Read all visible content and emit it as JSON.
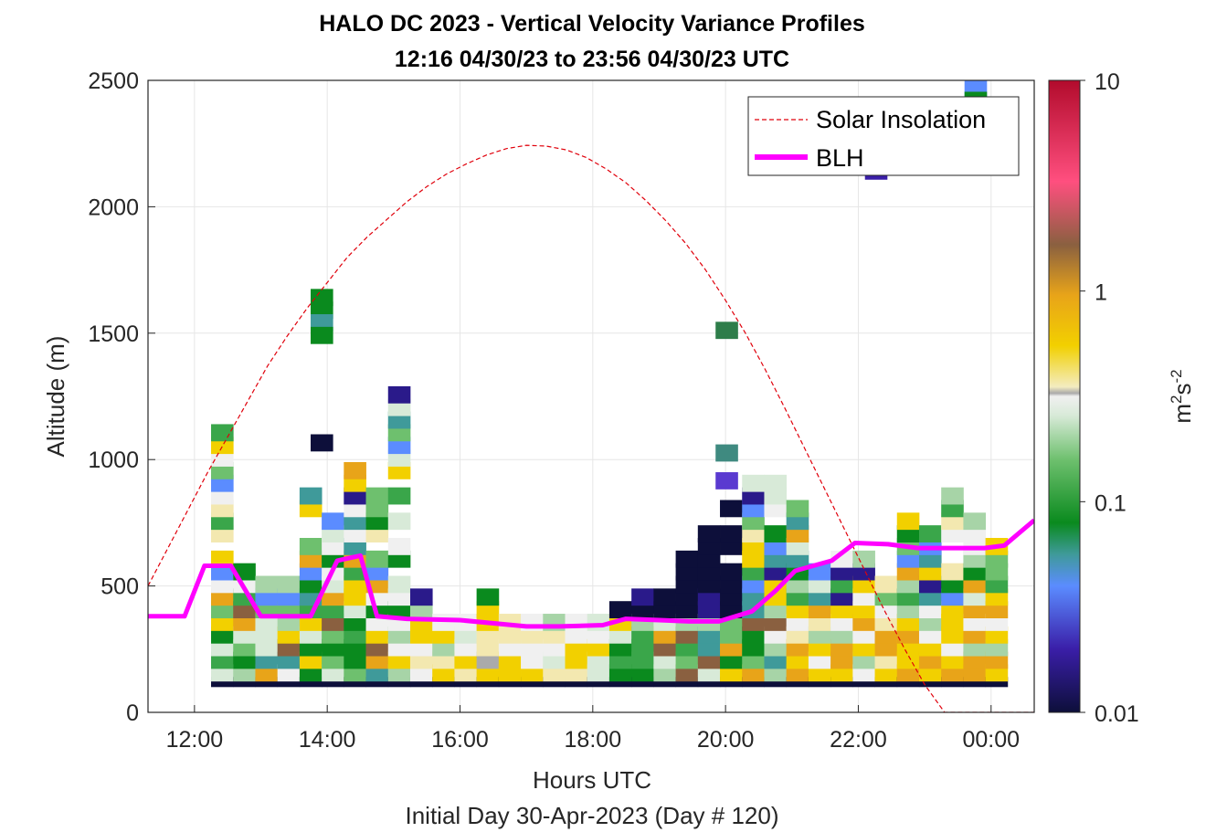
{
  "chart_data": {
    "type": "heatmap",
    "title": "HALO DC 2023 - Vertical Velocity Variance Profiles",
    "subtitle": "12:16 04/30/23 to 23:56 04/30/23  UTC",
    "xlabel": "Hours UTC",
    "xlabel2": "Initial Day 30-Apr-2023 (Day # 120)",
    "ylabel": "Altitude (m)",
    "x_ticks": [
      "12:00",
      "14:00",
      "16:00",
      "18:00",
      "20:00",
      "22:00",
      "00:00"
    ],
    "y_ticks": [
      "0",
      "500",
      "1000",
      "1500",
      "2000",
      "2500"
    ],
    "xlim_hours": [
      11.3,
      24.65
    ],
    "ylim": [
      0,
      2500
    ],
    "grid": true,
    "legend_position": "top-right",
    "colorbar": {
      "label_base": "m",
      "label_exp1": "2",
      "label_mid": "s",
      "label_exp2": "-2",
      "ticks": [
        "0.01",
        "0.1",
        "1",
        "10"
      ],
      "scale": "log",
      "range": [
        0.01,
        10
      ]
    },
    "series": [
      {
        "name": "Solar Insolation",
        "style": "dashed",
        "color": "#e0000b",
        "x": [
          11.3,
          11.6,
          11.9,
          12.2,
          12.5,
          12.8,
          13.1,
          13.4,
          13.7,
          14.0,
          14.3,
          14.6,
          14.9,
          15.2,
          15.5,
          15.8,
          16.1,
          16.4,
          16.7,
          17.0,
          17.3,
          17.6,
          17.9,
          18.2,
          18.5,
          18.8,
          19.1,
          19.4,
          19.7,
          20.0,
          20.3,
          20.6,
          20.9,
          21.2,
          21.5,
          21.8,
          22.1,
          22.4,
          22.7,
          23.0,
          23.3,
          23.6,
          23.85,
          24.0,
          24.3,
          24.65
        ],
        "y": [
          500,
          650,
          800,
          950,
          1090,
          1230,
          1370,
          1490,
          1600,
          1700,
          1800,
          1880,
          1950,
          2020,
          2080,
          2130,
          2170,
          2205,
          2230,
          2243,
          2240,
          2225,
          2195,
          2150,
          2095,
          2025,
          1945,
          1855,
          1750,
          1630,
          1500,
          1355,
          1200,
          1040,
          880,
          720,
          560,
          400,
          250,
          110,
          0,
          0,
          0,
          0,
          0,
          0
        ]
      },
      {
        "name": "BLH",
        "style": "solid",
        "color": "#ff00ff",
        "x": [
          11.3,
          11.85,
          12.15,
          12.55,
          13.0,
          13.3,
          13.75,
          14.15,
          14.5,
          14.75,
          15.2,
          16.0,
          17.0,
          17.5,
          18.15,
          18.5,
          19.0,
          19.45,
          19.9,
          20.4,
          20.75,
          21.05,
          21.6,
          21.95,
          22.45,
          22.9,
          23.5,
          23.9,
          24.2,
          24.65
        ],
        "y": [
          380,
          380,
          580,
          580,
          380,
          380,
          380,
          600,
          620,
          380,
          370,
          365,
          340,
          340,
          345,
          370,
          365,
          360,
          360,
          400,
          480,
          560,
          600,
          670,
          665,
          650,
          650,
          650,
          660,
          760
        ]
      }
    ]
  }
}
